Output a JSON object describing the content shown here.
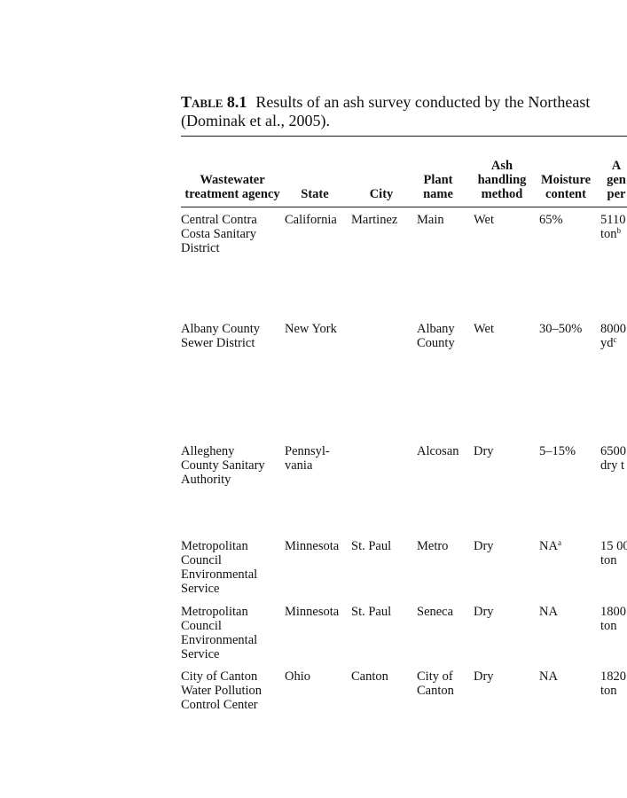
{
  "caption": {
    "label": "Table 8.1",
    "text": "Results of an ash survey conducted by the Northeast",
    "source": "(Dominak et al., 2005)."
  },
  "table": {
    "header": [
      [
        "Wastewater",
        "treatment agency"
      ],
      [
        "State"
      ],
      [
        "City"
      ],
      [
        "Plant",
        "name"
      ],
      [
        "Ash",
        "handling",
        "method"
      ],
      [
        "Moisture",
        "content"
      ],
      [
        "A",
        "gen",
        "per"
      ]
    ],
    "rows": [
      [
        [
          "Central Contra",
          "Costa Sanitary",
          "District"
        ],
        [
          "California"
        ],
        [
          "Martinez"
        ],
        [
          "Main"
        ],
        [
          "Wet"
        ],
        [
          "65%"
        ],
        [
          "5110",
          {
            "text": "ton",
            "sup": "b"
          }
        ]
      ],
      [
        [
          "Albany County",
          "Sewer District"
        ],
        [
          "New York"
        ],
        [],
        [
          "Albany",
          "County"
        ],
        [
          "Wet"
        ],
        [
          "30–50%"
        ],
        [
          "8000",
          {
            "text": "yd",
            "sup": "c"
          }
        ]
      ],
      [
        [
          "Allegheny",
          "County Sanitary",
          "Authority"
        ],
        [
          "Pennsyl-",
          "vania"
        ],
        [],
        [
          "Alcosan"
        ],
        [
          "Dry"
        ],
        [
          "5–15%"
        ],
        [
          "6500",
          "dry t"
        ]
      ],
      [
        [
          "Metropolitan",
          "Council",
          "Environmental",
          "Service"
        ],
        [
          "Minnesota"
        ],
        [
          "St. Paul"
        ],
        [
          "Metro"
        ],
        [
          "Dry"
        ],
        [
          {
            "text": "NA",
            "sup": "a"
          }
        ],
        [
          "15 00",
          "ton"
        ]
      ],
      [
        [
          "Metropolitan",
          "Council",
          "Environmental",
          "Service"
        ],
        [
          "Minnesota"
        ],
        [
          "St. Paul"
        ],
        [
          "Seneca"
        ],
        [
          "Dry"
        ],
        [
          "NA"
        ],
        [
          "1800",
          "ton"
        ]
      ],
      [
        [
          "City of Canton",
          "Water Pollution",
          "Control Center"
        ],
        [
          "Ohio"
        ],
        [
          "Canton"
        ],
        [
          "City of",
          "Canton"
        ],
        [
          "Dry"
        ],
        [
          "NA"
        ],
        [
          "1820",
          "ton"
        ]
      ]
    ]
  }
}
